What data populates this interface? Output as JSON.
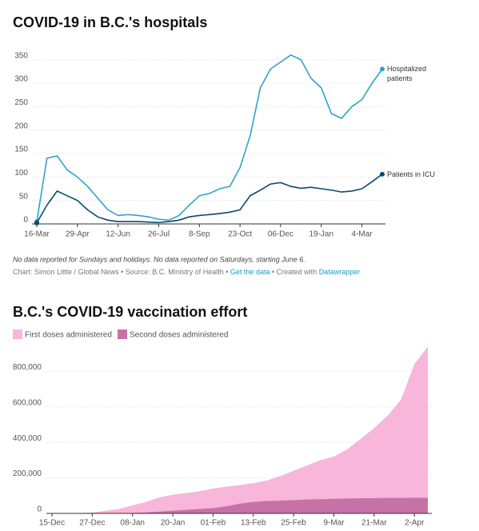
{
  "chart_data": [
    {
      "type": "line",
      "title": "COVID-19 in B.C.'s hospitals",
      "categories": [
        "16-Mar",
        null,
        null,
        null,
        "29-Apr",
        null,
        null,
        null,
        "12-Jun",
        null,
        null,
        null,
        "26-Jul",
        null,
        null,
        null,
        "8-Sep",
        null,
        null,
        null,
        "23-Oct",
        null,
        null,
        null,
        "06-Dec",
        null,
        null,
        null,
        "19-Jan",
        null,
        null,
        null,
        "4-Mar",
        null,
        null
      ],
      "series": [
        {
          "name": "Hospitalized patients",
          "color": "#2ea3c9",
          "values": [
            5,
            140,
            145,
            115,
            100,
            80,
            55,
            30,
            18,
            20,
            18,
            15,
            10,
            8,
            18,
            40,
            60,
            65,
            75,
            80,
            120,
            188,
            290,
            330,
            345,
            360,
            350,
            310,
            290,
            235,
            225,
            250,
            265,
            300,
            330
          ]
        },
        {
          "name": "Patients in ICU",
          "color": "#0b4a6b",
          "values": [
            2,
            40,
            70,
            60,
            50,
            30,
            15,
            8,
            5,
            5,
            5,
            4,
            3,
            5,
            8,
            15,
            18,
            20,
            22,
            25,
            30,
            60,
            72,
            85,
            88,
            80,
            76,
            78,
            75,
            72,
            68,
            70,
            75,
            90,
            106
          ]
        }
      ],
      "ylim": [
        0,
        375
      ],
      "yticks": [
        0,
        50,
        100,
        150,
        200,
        250,
        300,
        350
      ],
      "grid": true,
      "note": "No data reported for Sundays and holidays. No data reported on Saturdays, starting June 6.",
      "credit": "Chart: Simon Little / Global News • Source: B.C. Ministry of Health •",
      "get_data": "Get the data",
      "created_with": "• Created with",
      "tool": "Datawrapper"
    },
    {
      "type": "area",
      "title": "B.C.'s COVID-19 vaccination effort",
      "categories": [
        "15-Dec",
        null,
        null,
        "27-Dec",
        null,
        null,
        "08-Jan",
        null,
        null,
        "20-Jan",
        null,
        null,
        "01-Feb",
        null,
        null,
        "13-Feb",
        null,
        null,
        "25-Feb",
        null,
        null,
        "9-Mar",
        null,
        null,
        "21-Mar",
        null,
        null,
        "2-Apr",
        null
      ],
      "series": [
        {
          "name": "First doses administered",
          "color": "#f7b6da",
          "values": [
            0,
            500,
            2000,
            5000,
            15000,
            25000,
            45000,
            65000,
            90000,
            105000,
            115000,
            125000,
            140000,
            150000,
            160000,
            170000,
            185000,
            210000,
            240000,
            270000,
            300000,
            320000,
            360000,
            420000,
            480000,
            550000,
            640000,
            840000,
            940000
          ]
        },
        {
          "name": "Second doses administered",
          "color": "#c772a6",
          "values": [
            0,
            0,
            0,
            0,
            1000,
            1500,
            2000,
            5000,
            10000,
            15000,
            20000,
            25000,
            30000,
            40000,
            55000,
            65000,
            70000,
            72000,
            75000,
            78000,
            80000,
            82000,
            84000,
            85000,
            86000,
            87000,
            87000,
            88000,
            88000
          ]
        }
      ],
      "ylim": [
        0,
        950000
      ],
      "yticks": [
        0,
        {
          "value": 200000,
          "label": "200,000"
        },
        {
          "value": 400000,
          "label": "400,000"
        },
        {
          "value": 600000,
          "label": "600,000"
        },
        {
          "value": 800000,
          "label": "800,000"
        }
      ],
      "grid": true
    }
  ]
}
